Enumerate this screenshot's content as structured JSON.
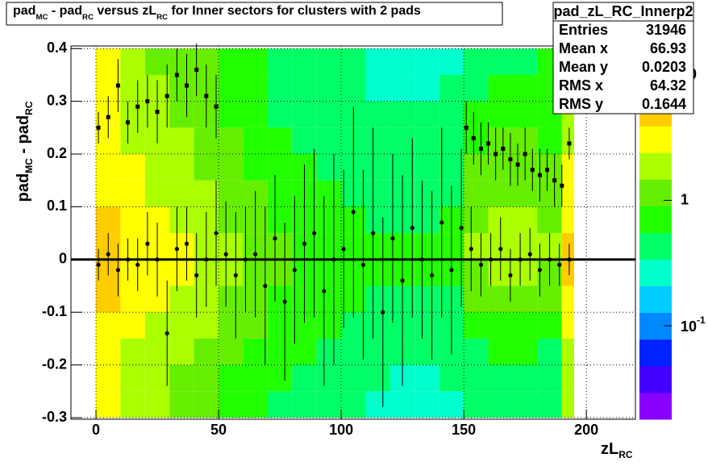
{
  "chart_data": {
    "type": "heatmap",
    "title_parts": [
      "pad",
      "MC",
      " - pad",
      "RC",
      " versus zL",
      "RC",
      " for Inner sectors for clusters with 2 pads"
    ],
    "x_label_parts": [
      "zL",
      "RC"
    ],
    "y_label_parts": [
      "pad",
      "MC",
      " - pad",
      "RC"
    ],
    "xlim": [
      -10.2,
      220
    ],
    "ylim": [
      -0.303,
      0.405
    ],
    "xticks": [
      0,
      50,
      100,
      150,
      200
    ],
    "yticks": [
      -0.3,
      -0.2,
      -0.1,
      0,
      0.1,
      0.2,
      0.3,
      0.4
    ],
    "grid": true,
    "zlog": true,
    "zlim": [
      0.018,
      17
    ],
    "zticks": [
      {
        "value": 0.1,
        "label": "10",
        "sup": "-1"
      },
      {
        "value": 1,
        "label": "1"
      },
      {
        "value": 10,
        "label": "10"
      }
    ],
    "palette": [
      "#8800ff",
      "#4400ff",
      "#0022ff",
      "#0088ff",
      "#00ccff",
      "#00ffcc",
      "#00ff66",
      "#22ff00",
      "#66ee00",
      "#aaff00",
      "#ffff00",
      "#ffcc00",
      "#ff8800",
      "#ff3300"
    ],
    "xbins": [
      0,
      10,
      20,
      30,
      40,
      50,
      60,
      70,
      80,
      90,
      100,
      110,
      120,
      130,
      140,
      150,
      160,
      170,
      180,
      190,
      195
    ],
    "ybins": [
      -0.3,
      -0.25,
      -0.2,
      -0.15,
      -0.1,
      -0.05,
      0,
      0.05,
      0.1,
      0.15,
      0.2,
      0.25,
      0.3,
      0.35,
      0.4
    ],
    "z": [
      [
        3,
        1.8,
        1.5,
        1.2,
        1,
        0.7,
        0.6,
        0.5,
        0.45,
        0.4,
        0.35,
        0.3,
        0.3,
        0.3,
        0.3,
        0.35,
        0.4,
        0.4,
        0.35,
        1.8
      ],
      [
        3.2,
        2,
        1.7,
        1.4,
        1.1,
        0.8,
        0.7,
        0.6,
        0.5,
        0.45,
        0.4,
        0.35,
        0.3,
        0.3,
        0.35,
        0.4,
        0.45,
        0.45,
        0.4,
        2
      ],
      [
        3.5,
        2.3,
        2,
        1.6,
        1.3,
        1,
        0.8,
        0.7,
        0.6,
        0.5,
        0.45,
        0.4,
        0.35,
        0.35,
        0.4,
        0.5,
        0.6,
        0.6,
        0.5,
        2.2
      ],
      [
        3.8,
        2.6,
        2.3,
        1.9,
        1.5,
        1.2,
        1,
        0.8,
        0.7,
        0.6,
        0.5,
        0.45,
        0.45,
        0.4,
        0.45,
        0.7,
        0.8,
        0.8,
        0.7,
        2.5
      ],
      [
        4.2,
        3,
        2.6,
        2.2,
        1.8,
        1.4,
        1.1,
        0.9,
        0.8,
        0.7,
        0.6,
        0.55,
        0.5,
        0.5,
        0.55,
        1,
        1.1,
        1.1,
        1,
        3
      ],
      [
        5,
        3.5,
        3,
        2.5,
        2,
        1.6,
        1.3,
        1,
        0.9,
        0.8,
        0.7,
        0.6,
        0.6,
        0.6,
        0.7,
        1.4,
        1.6,
        1.6,
        1.4,
        4
      ],
      [
        5,
        3.5,
        3,
        2.5,
        2,
        1.6,
        1.3,
        1,
        0.9,
        0.8,
        0.7,
        0.6,
        0.6,
        0.6,
        0.7,
        1.5,
        1.7,
        1.7,
        1.5,
        4
      ],
      [
        4.2,
        3,
        2.6,
        2.2,
        1.8,
        1.4,
        1.1,
        0.9,
        0.8,
        0.7,
        0.6,
        0.55,
        0.55,
        0.55,
        0.6,
        1.3,
        1.5,
        1.5,
        1.3,
        3.2
      ],
      [
        3.8,
        2.8,
        2.3,
        2,
        1.6,
        1.2,
        1,
        0.8,
        0.7,
        0.6,
        0.55,
        0.5,
        0.5,
        0.5,
        0.55,
        1.2,
        1.4,
        1.4,
        1.2,
        2.8
      ],
      [
        3.5,
        2.5,
        2.1,
        1.8,
        1.4,
        1.1,
        0.9,
        0.7,
        0.6,
        0.55,
        0.5,
        0.45,
        0.45,
        0.45,
        0.5,
        1.1,
        1.3,
        1.3,
        1.1,
        2.5
      ],
      [
        3.2,
        2.2,
        1.9,
        1.6,
        1.3,
        1,
        0.8,
        0.6,
        0.55,
        0.5,
        0.45,
        0.4,
        0.4,
        0.4,
        0.45,
        0.9,
        1.1,
        1.1,
        0.9,
        2.2
      ],
      [
        3,
        2,
        1.7,
        1.4,
        1.2,
        0.9,
        0.7,
        0.55,
        0.5,
        0.45,
        0.4,
        0.35,
        0.35,
        0.35,
        0.4,
        0.7,
        0.9,
        0.9,
        0.8,
        2
      ],
      [
        2.8,
        1.7,
        1.5,
        1.3,
        1.1,
        0.8,
        0.6,
        0.5,
        0.45,
        0.4,
        0.35,
        0.3,
        0.3,
        0.3,
        0.35,
        0.5,
        0.7,
        0.7,
        0.7,
        1.8
      ],
      [
        2.5,
        1.5,
        1.4,
        1.2,
        1,
        0.7,
        0.6,
        0.5,
        0.4,
        0.4,
        0.35,
        0.3,
        0.3,
        0.3,
        0.3,
        0.4,
        0.5,
        0.5,
        0.6,
        1.5
      ]
    ],
    "hline": 0,
    "series": [
      {
        "marker": "circle",
        "color": "#000000",
        "x": [
          1,
          5,
          9,
          13,
          17,
          21,
          25,
          29,
          33,
          37,
          41,
          45,
          49,
          53,
          57,
          61,
          65,
          69,
          73,
          77,
          81,
          85,
          89,
          93,
          97,
          101,
          105,
          109,
          113,
          117,
          121,
          125,
          129,
          133,
          137,
          141,
          145,
          149,
          153,
          157,
          161,
          165,
          169,
          173,
          177,
          181,
          185,
          189,
          193
        ],
        "values": [
          -0.01,
          0.01,
          -0.02,
          0,
          -0.01,
          0.03,
          0,
          -0.14,
          0.02,
          0.03,
          -0.03,
          0,
          0.05,
          0.01,
          -0.03,
          0,
          0.01,
          -0.05,
          0.04,
          -0.08,
          -0.02,
          0.03,
          0.05,
          -0.06,
          0,
          0.02,
          0.09,
          -0.01,
          0.05,
          -0.1,
          0.04,
          -0.04,
          0.06,
          0,
          -0.03,
          0.07,
          -0.02,
          0.06,
          0.02,
          -0.01,
          0,
          0.02,
          -0.03,
          0,
          0.01,
          -0.02,
          0,
          -0.01,
          0
        ],
        "errors": [
          0.03,
          0.04,
          0.05,
          0.04,
          0.05,
          0.06,
          0.07,
          0.1,
          0.08,
          0.07,
          0.08,
          0.09,
          0.1,
          0.1,
          0.12,
          0.1,
          0.12,
          0.15,
          0.12,
          0.15,
          0.14,
          0.15,
          0.16,
          0.18,
          0.2,
          0.15,
          0.2,
          0.18,
          0.2,
          0.18,
          0.16,
          0.2,
          0.17,
          0.15,
          0.16,
          0.18,
          0.16,
          0.15,
          0.08,
          0.06,
          0.05,
          0.06,
          0.05,
          0.05,
          0.05,
          0.05,
          0.05,
          0.04,
          0.03
        ]
      },
      {
        "marker": "square",
        "color": "#000000",
        "x": [
          1,
          5,
          9,
          13,
          17,
          21,
          25,
          29,
          33,
          37,
          41,
          45,
          49,
          151,
          154,
          157,
          160,
          163,
          166,
          169,
          172,
          175,
          178,
          181,
          184,
          187,
          190,
          193
        ],
        "values": [
          0.25,
          0.27,
          0.33,
          0.26,
          0.29,
          0.3,
          0.28,
          0.31,
          0.35,
          0.33,
          0.36,
          0.31,
          0.29,
          0.25,
          0.23,
          0.21,
          0.22,
          0.2,
          0.21,
          0.19,
          0.18,
          0.2,
          0.17,
          0.16,
          0.17,
          0.15,
          0.14,
          0.22
        ],
        "errors": [
          0.03,
          0.04,
          0.05,
          0.04,
          0.05,
          0.05,
          0.06,
          0.06,
          0.05,
          0.06,
          0.05,
          0.06,
          0.06,
          0.05,
          0.05,
          0.05,
          0.04,
          0.05,
          0.04,
          0.05,
          0.04,
          0.05,
          0.04,
          0.05,
          0.04,
          0.05,
          0.04,
          0.03
        ]
      }
    ],
    "stats": {
      "name": "pad_zL_RC_Innerp2",
      "rows": [
        [
          "Entries",
          "31946"
        ],
        [
          "Mean x",
          "66.93"
        ],
        [
          "Mean y",
          "0.0203"
        ],
        [
          "RMS x",
          "64.32"
        ],
        [
          "RMS y",
          "0.1644"
        ]
      ]
    }
  }
}
